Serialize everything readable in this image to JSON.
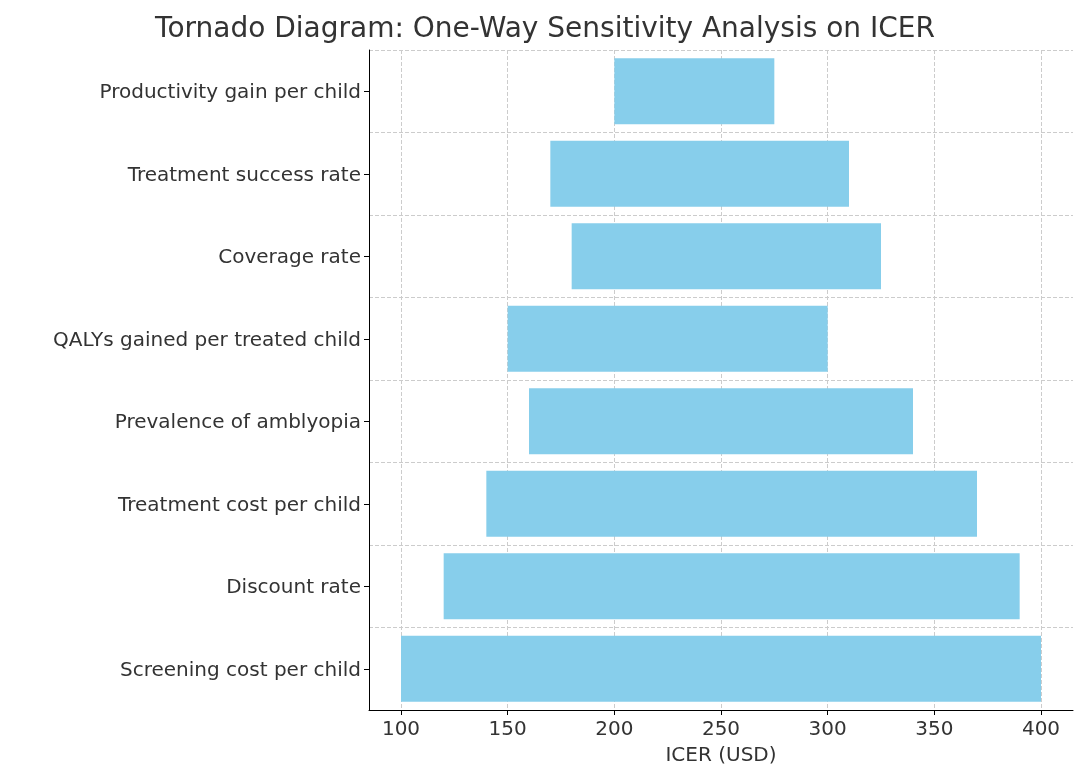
{
  "chart_data": {
    "type": "bar",
    "orientation": "horizontal",
    "title": "Tornado Diagram: One-Way Sensitivity Analysis on ICER",
    "xlabel": "ICER (USD)",
    "categories": [
      "Productivity gain per child",
      "Treatment success rate",
      "Coverage rate",
      "QALYs gained per treated child",
      "Prevalence of amblyopia",
      "Treatment cost per child",
      "Discount rate",
      "Screening cost per child"
    ],
    "base": [
      200,
      170,
      180,
      150,
      160,
      140,
      120,
      100
    ],
    "values": [
      75,
      140,
      145,
      150,
      180,
      230,
      270,
      300
    ],
    "color": "#87ceeb",
    "xlim": [
      85,
      415
    ],
    "xticks": [
      100,
      150,
      200,
      250,
      300,
      350,
      400
    ],
    "grid": true
  }
}
